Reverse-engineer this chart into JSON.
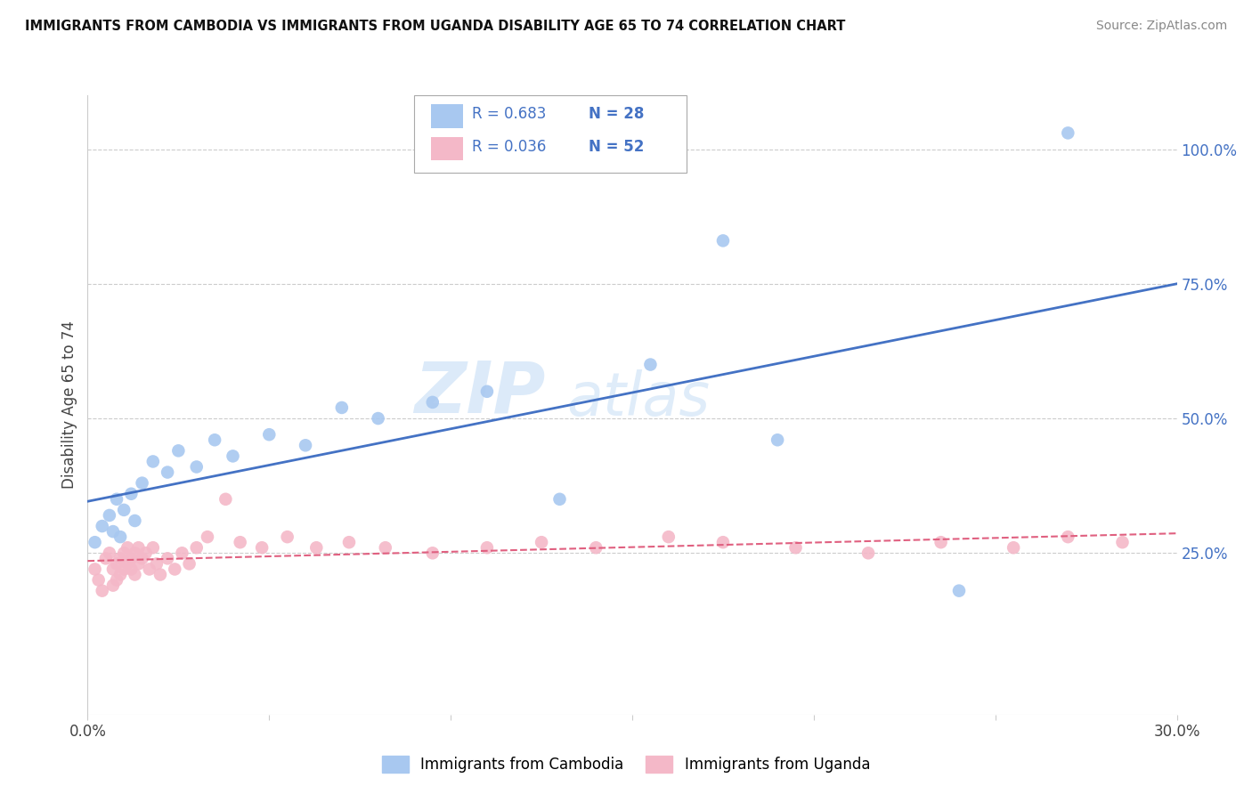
{
  "title": "IMMIGRANTS FROM CAMBODIA VS IMMIGRANTS FROM UGANDA DISABILITY AGE 65 TO 74 CORRELATION CHART",
  "source": "Source: ZipAtlas.com",
  "ylabel": "Disability Age 65 to 74",
  "xlim": [
    0.0,
    0.3
  ],
  "ylim": [
    -0.05,
    1.1
  ],
  "xticks": [
    0.0,
    0.05,
    0.1,
    0.15,
    0.2,
    0.25,
    0.3
  ],
  "ytick_labels_right": [
    "100.0%",
    "75.0%",
    "50.0%",
    "25.0%"
  ],
  "ytick_positions_right": [
    1.0,
    0.75,
    0.5,
    0.25
  ],
  "cambodia_color": "#a8c8f0",
  "uganda_color": "#f4b8c8",
  "cambodia_line_color": "#4472c4",
  "uganda_line_color": "#e06080",
  "watermark_zip": "ZIP",
  "watermark_atlas": "atlas",
  "legend_R_cambodia": "R = 0.683",
  "legend_N_cambodia": "N = 28",
  "legend_R_uganda": "R = 0.036",
  "legend_N_uganda": "N = 52",
  "legend_label_cambodia": "Immigrants from Cambodia",
  "legend_label_uganda": "Immigrants from Uganda",
  "cambodia_x": [
    0.002,
    0.004,
    0.006,
    0.007,
    0.008,
    0.009,
    0.01,
    0.012,
    0.013,
    0.015,
    0.018,
    0.022,
    0.025,
    0.03,
    0.035,
    0.04,
    0.05,
    0.06,
    0.07,
    0.08,
    0.095,
    0.11,
    0.13,
    0.155,
    0.175,
    0.19,
    0.24,
    0.27
  ],
  "cambodia_y": [
    0.27,
    0.3,
    0.32,
    0.29,
    0.35,
    0.28,
    0.33,
    0.36,
    0.31,
    0.38,
    0.42,
    0.4,
    0.44,
    0.41,
    0.46,
    0.43,
    0.47,
    0.45,
    0.52,
    0.5,
    0.53,
    0.55,
    0.35,
    0.6,
    0.83,
    0.46,
    0.18,
    1.03
  ],
  "uganda_x": [
    0.002,
    0.003,
    0.004,
    0.005,
    0.006,
    0.007,
    0.007,
    0.008,
    0.008,
    0.009,
    0.009,
    0.01,
    0.01,
    0.011,
    0.011,
    0.012,
    0.012,
    0.013,
    0.013,
    0.014,
    0.014,
    0.015,
    0.016,
    0.017,
    0.018,
    0.019,
    0.02,
    0.022,
    0.024,
    0.026,
    0.028,
    0.03,
    0.033,
    0.038,
    0.042,
    0.048,
    0.055,
    0.063,
    0.072,
    0.082,
    0.095,
    0.11,
    0.125,
    0.14,
    0.16,
    0.175,
    0.195,
    0.215,
    0.235,
    0.255,
    0.27,
    0.285
  ],
  "uganda_y": [
    0.22,
    0.2,
    0.18,
    0.24,
    0.25,
    0.19,
    0.22,
    0.23,
    0.2,
    0.24,
    0.21,
    0.22,
    0.25,
    0.23,
    0.26,
    0.22,
    0.24,
    0.25,
    0.21,
    0.23,
    0.26,
    0.24,
    0.25,
    0.22,
    0.26,
    0.23,
    0.21,
    0.24,
    0.22,
    0.25,
    0.23,
    0.26,
    0.28,
    0.35,
    0.27,
    0.26,
    0.28,
    0.26,
    0.27,
    0.26,
    0.25,
    0.26,
    0.27,
    0.26,
    0.28,
    0.27,
    0.26,
    0.25,
    0.27,
    0.26,
    0.28,
    0.27
  ],
  "background_color": "#ffffff",
  "grid_color": "#cccccc"
}
